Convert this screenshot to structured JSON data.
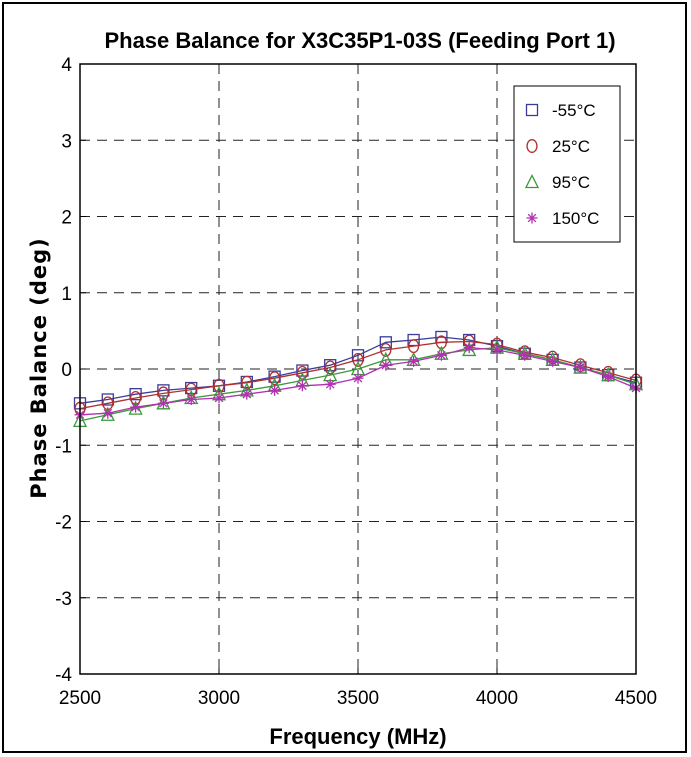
{
  "chart_data": {
    "type": "line",
    "title": "Phase Balance for X3C35P1-03S (Feeding Port 1)",
    "xlabel": "Frequency (MHz)",
    "ylabel": "Phase Balance (deg)",
    "xlim": [
      2500,
      4500
    ],
    "ylim": [
      -4,
      4
    ],
    "x_ticks": [
      "2500",
      "3000",
      "3500",
      "4000",
      "4500"
    ],
    "y_ticks": [
      "-4",
      "-3",
      "-2",
      "-1",
      "0",
      "1",
      "2",
      "3",
      "4"
    ],
    "grid": true,
    "legend_position": "top-right",
    "x": [
      2500,
      2600,
      2700,
      2800,
      2900,
      3000,
      3100,
      3200,
      3300,
      3400,
      3500,
      3600,
      3700,
      3800,
      3900,
      4000,
      4100,
      4200,
      4300,
      4400,
      4500
    ],
    "series": [
      {
        "name": "-55°C",
        "marker": "square",
        "color": "#3b3b9a",
        "values": [
          -0.45,
          -0.4,
          -0.33,
          -0.28,
          -0.25,
          -0.22,
          -0.17,
          -0.1,
          -0.02,
          0.05,
          0.18,
          0.35,
          0.38,
          0.42,
          0.38,
          0.3,
          0.2,
          0.12,
          0.02,
          -0.08,
          -0.18
        ]
      },
      {
        "name": "25°C",
        "marker": "circle",
        "color": "#b03030",
        "values": [
          -0.52,
          -0.45,
          -0.38,
          -0.32,
          -0.27,
          -0.22,
          -0.18,
          -0.12,
          -0.05,
          0.02,
          0.12,
          0.25,
          0.3,
          0.35,
          0.36,
          0.32,
          0.22,
          0.15,
          0.05,
          -0.05,
          -0.15
        ]
      },
      {
        "name": "95°C",
        "marker": "triangle",
        "color": "#3a9a3a",
        "values": [
          -0.68,
          -0.6,
          -0.52,
          -0.45,
          -0.38,
          -0.33,
          -0.28,
          -0.22,
          -0.15,
          -0.08,
          0.0,
          0.12,
          0.12,
          0.2,
          0.25,
          0.28,
          0.2,
          0.12,
          0.02,
          -0.08,
          -0.2
        ]
      },
      {
        "name": "150°C",
        "marker": "star",
        "color": "#b030b0",
        "values": [
          -0.6,
          -0.58,
          -0.5,
          -0.45,
          -0.4,
          -0.38,
          -0.33,
          -0.28,
          -0.22,
          -0.2,
          -0.12,
          0.05,
          0.1,
          0.18,
          0.28,
          0.25,
          0.18,
          0.1,
          0.02,
          -0.1,
          -0.25
        ]
      }
    ]
  }
}
